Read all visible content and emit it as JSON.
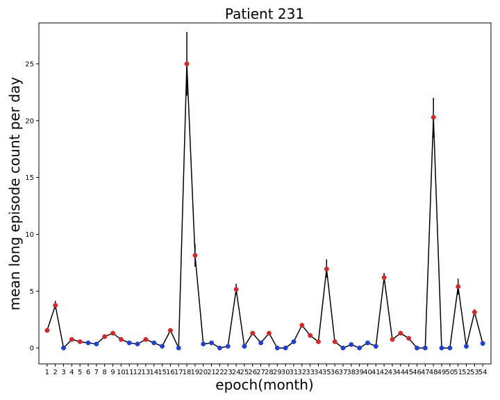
{
  "chart_data": {
    "type": "line",
    "title": "Patient 231",
    "xlabel": "epoch(month)",
    "ylabel": "mean long episode count per day",
    "ylim": [
      -1.4,
      28.6
    ],
    "yticks": [
      0,
      5,
      10,
      15,
      20,
      25
    ],
    "grid": false,
    "legend": "none",
    "line_color": "#000000",
    "marker_colors": {
      "red": "#d62728",
      "blue": "#1f3fdb"
    },
    "x": [
      1,
      2,
      3,
      4,
      5,
      6,
      7,
      8,
      9,
      10,
      11,
      12,
      13,
      14,
      15,
      16,
      17,
      18,
      19,
      20,
      21,
      22,
      23,
      24,
      25,
      26,
      27,
      28,
      29,
      30,
      31,
      32,
      33,
      34,
      35,
      36,
      37,
      38,
      39,
      40,
      41,
      42,
      43,
      44,
      45,
      46,
      47,
      48,
      49,
      50,
      51,
      52,
      53,
      54
    ],
    "values": [
      1.55,
      3.75,
      0.0,
      0.75,
      0.55,
      0.45,
      0.35,
      1.0,
      1.3,
      0.75,
      0.45,
      0.35,
      0.75,
      0.45,
      0.15,
      1.55,
      0.0,
      25.0,
      8.15,
      0.35,
      0.45,
      0.0,
      0.15,
      5.15,
      0.15,
      1.3,
      0.45,
      1.3,
      0.0,
      0.0,
      0.55,
      2.0,
      1.1,
      0.55,
      6.95,
      0.55,
      0.0,
      0.3,
      0.0,
      0.45,
      0.15,
      6.2,
      0.75,
      1.3,
      0.85,
      0.0,
      0.0,
      20.3,
      0.0,
      0.0,
      5.4,
      0.15,
      3.15,
      0.4
    ],
    "error_low": [
      1.55,
      3.45,
      0.0,
      0.75,
      0.55,
      0.45,
      0.35,
      1.0,
      1.3,
      0.75,
      0.45,
      0.35,
      0.75,
      0.45,
      0.15,
      1.55,
      0.0,
      22.2,
      7.15,
      0.35,
      0.45,
      0.0,
      0.15,
      4.7,
      0.15,
      1.3,
      0.45,
      1.3,
      0.0,
      0.0,
      0.55,
      1.8,
      1.1,
      0.55,
      6.2,
      0.55,
      0.0,
      0.3,
      0.0,
      0.45,
      0.15,
      5.8,
      0.75,
      1.3,
      0.85,
      0.0,
      0.0,
      18.5,
      0.0,
      0.0,
      4.7,
      0.15,
      2.9,
      0.4
    ],
    "error_high": [
      1.55,
      4.15,
      0.0,
      0.75,
      0.55,
      0.45,
      0.35,
      1.0,
      1.3,
      0.75,
      0.45,
      0.35,
      0.75,
      0.45,
      0.15,
      1.55,
      0.0,
      27.8,
      9.15,
      0.35,
      0.45,
      0.0,
      0.15,
      5.65,
      0.15,
      1.3,
      0.45,
      1.3,
      0.0,
      0.0,
      0.55,
      2.2,
      1.1,
      0.55,
      7.8,
      0.55,
      0.0,
      0.3,
      0.0,
      0.45,
      0.15,
      6.6,
      0.75,
      1.3,
      0.85,
      0.0,
      0.0,
      22.0,
      0.0,
      0.0,
      6.1,
      0.15,
      3.4,
      0.4
    ],
    "marker": [
      "red",
      "red",
      "blue",
      "red",
      "red",
      "blue",
      "blue",
      "red",
      "red",
      "red",
      "blue",
      "blue",
      "red",
      "blue",
      "blue",
      "red",
      "blue",
      "red",
      "red",
      "blue",
      "blue",
      "blue",
      "blue",
      "red",
      "blue",
      "red",
      "blue",
      "red",
      "blue",
      "blue",
      "blue",
      "red",
      "red",
      "red",
      "red",
      "red",
      "blue",
      "blue",
      "blue",
      "blue",
      "blue",
      "red",
      "red",
      "red",
      "red",
      "blue",
      "blue",
      "red",
      "blue",
      "blue",
      "red",
      "blue",
      "red",
      "blue"
    ]
  }
}
